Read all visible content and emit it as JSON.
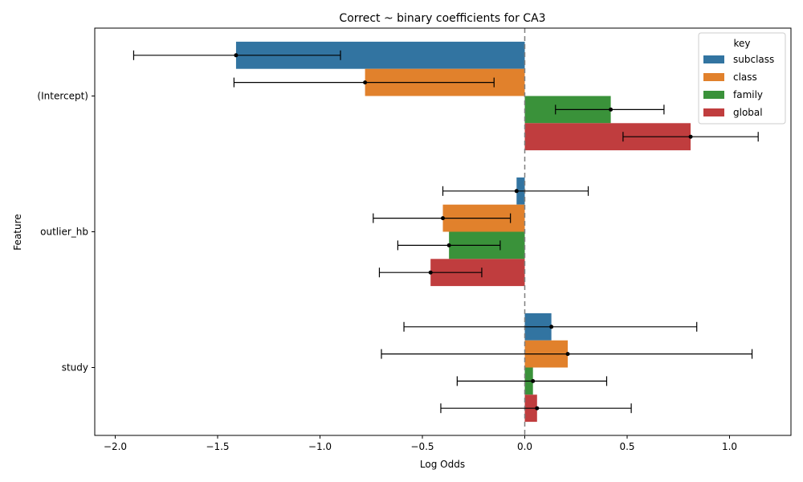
{
  "chart_data": {
    "type": "bar",
    "orientation": "horizontal",
    "title": "Correct ~ binary coefficients for CA3",
    "xlabel": "Log Odds",
    "ylabel": "Feature",
    "categories": [
      "(Intercept)",
      "outlier_hb",
      "study"
    ],
    "xlim": [
      -2.1,
      1.3
    ],
    "xticks": [
      -2.0,
      -1.5,
      -1.0,
      -0.5,
      0.0,
      0.5,
      1.0
    ],
    "xtick_labels": [
      "−2.0",
      "−1.5",
      "−1.0",
      "−0.5",
      "0.0",
      "0.5",
      "1.0"
    ],
    "reference_line": {
      "x": 0.0,
      "style": "dashed",
      "color": "#808080"
    },
    "legend": {
      "title": "key",
      "placement": "top-right"
    },
    "series": [
      {
        "name": "subclass",
        "color": "#3274a1",
        "values": [
          -1.41,
          -0.04,
          0.13
        ],
        "ci_low": [
          -1.91,
          -0.4,
          -0.59
        ],
        "ci_high": [
          -0.9,
          0.31,
          0.84
        ]
      },
      {
        "name": "class",
        "color": "#e1812c",
        "values": [
          -0.78,
          -0.4,
          0.21
        ],
        "ci_low": [
          -1.42,
          -0.74,
          -0.7
        ],
        "ci_high": [
          -0.15,
          -0.07,
          1.11
        ]
      },
      {
        "name": "family",
        "color": "#3a923a",
        "values": [
          0.42,
          -0.37,
          0.04
        ],
        "ci_low": [
          0.15,
          -0.62,
          -0.33
        ],
        "ci_high": [
          0.68,
          -0.12,
          0.4
        ]
      },
      {
        "name": "global",
        "color": "#c03d3e",
        "values": [
          0.81,
          -0.46,
          0.06
        ],
        "ci_low": [
          0.48,
          -0.71,
          -0.41
        ],
        "ci_high": [
          1.14,
          -0.21,
          0.52
        ]
      }
    ]
  }
}
